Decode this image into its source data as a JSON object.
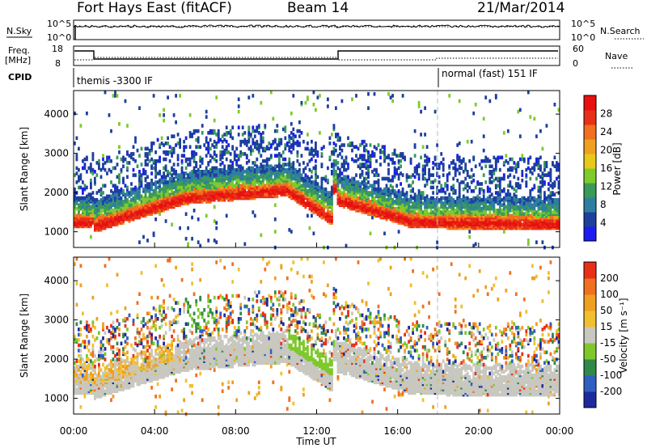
{
  "header": {
    "title": "Fort Hays East (fitACF)",
    "beam": "Beam 14",
    "date": "21/Mar/2014"
  },
  "top_panels": {
    "nsky_label": "N.Sky",
    "nsearch_label": "N.Search",
    "noise_ticks": [
      "10^5",
      "10^0"
    ],
    "freq_label_line1": "Freq.",
    "freq_label_line2": "[MHz]",
    "freq_ticks": [
      "18",
      "8"
    ],
    "nave_label": "Nave",
    "nave_ticks": [
      "60",
      "0"
    ],
    "cpid_label": "CPID",
    "cpid_segments": [
      {
        "text": "themis -3300 IF",
        "start_hour": 0
      },
      {
        "text": "normal (fast) 151 IF",
        "start_hour": 18
      }
    ]
  },
  "chart_data": [
    {
      "type": "heatmap",
      "panel": "power",
      "ylabel": "Slant Range [km]",
      "xlabel": "",
      "ylim": [
        600,
        4600
      ],
      "y_ticks": [
        1000,
        2000,
        3000,
        4000
      ],
      "colorbar": {
        "label": "Power [dB]",
        "ticks": [
          "4",
          "8",
          "12",
          "16",
          "20",
          "24",
          "28"
        ],
        "colors": [
          "#1c1cf0",
          "#1d3f9e",
          "#2f7ea0",
          "#3a9a5a",
          "#7ecb2c",
          "#e8c81a",
          "#f0a020",
          "#f07020",
          "#e83018",
          "#e81010"
        ]
      }
    },
    {
      "type": "heatmap",
      "panel": "velocity",
      "ylabel": "Slant Range [km]",
      "xlabel": "Time UT",
      "ylim": [
        600,
        4600
      ],
      "y_ticks": [
        1000,
        2000,
        3000,
        4000
      ],
      "x_ticks": [
        "00:00",
        "04:00",
        "08:00",
        "12:00",
        "16:00",
        "20:00",
        "00:00"
      ],
      "xlim_hours": [
        0,
        24
      ],
      "ground_scatter_color": "#c8c8c0",
      "colorbar": {
        "label": "Velocity [m s⁻¹]",
        "ticks": [
          "200",
          "100",
          "50",
          "15",
          "-15",
          "-50",
          "-100",
          "-200"
        ],
        "colors": [
          "#1d2a9e",
          "#2f5fc0",
          "#2f8a4a",
          "#7ec82c",
          "#c8c8c0",
          "#f0c030",
          "#f0a020",
          "#f07020",
          "#e83018"
        ]
      }
    }
  ]
}
